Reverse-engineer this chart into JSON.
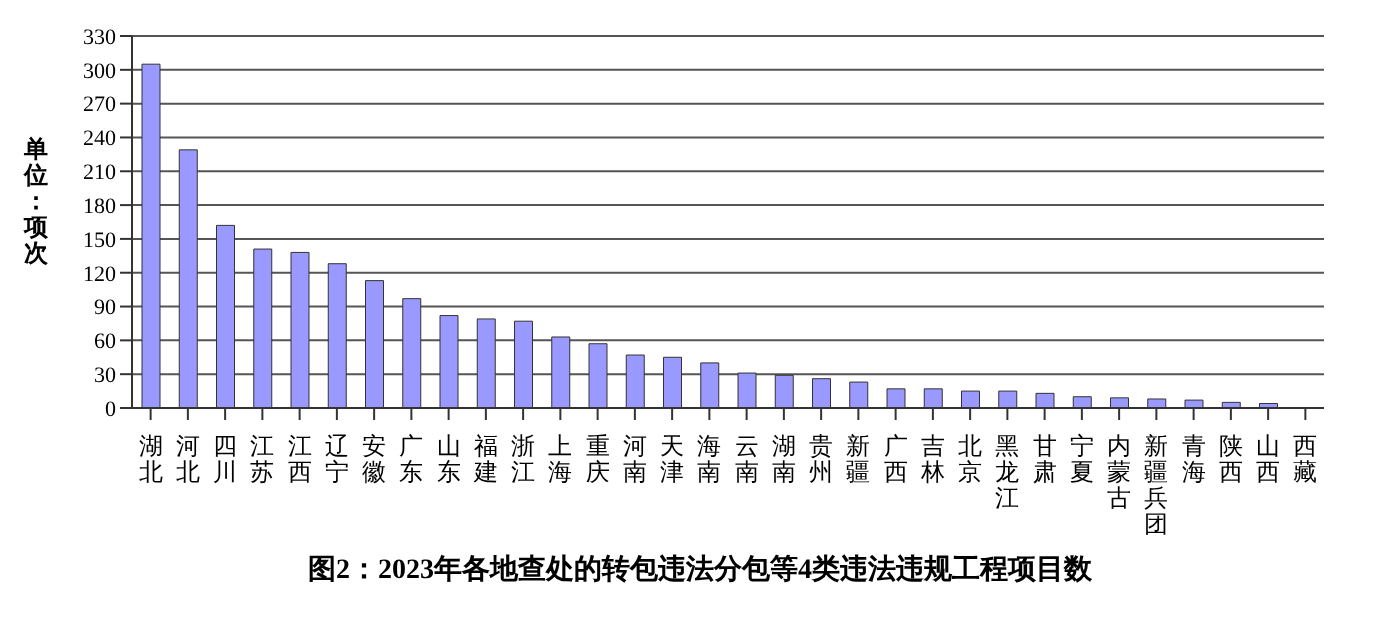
{
  "chart_data": {
    "type": "bar",
    "title": "图2：2023年各地查处的转包违法分包等4类违法违规工程项目数",
    "ylabel": "单位：项次",
    "categories": [
      "湖北",
      "河北",
      "四川",
      "江苏",
      "江西",
      "辽宁",
      "安徽",
      "广东",
      "山东",
      "福建",
      "浙江",
      "上海",
      "重庆",
      "河南",
      "天津",
      "海南",
      "云南",
      "湖南",
      "贵州",
      "新疆",
      "广西",
      "吉林",
      "北京",
      "黑龙江",
      "甘肃",
      "宁夏",
      "内蒙古",
      "新疆兵团",
      "青海",
      "陕西",
      "山西",
      "西藏"
    ],
    "values": [
      305,
      229,
      162,
      141,
      138,
      128,
      113,
      97,
      82,
      79,
      77,
      63,
      57,
      47,
      45,
      40,
      31,
      29,
      26,
      23,
      17,
      17,
      15,
      15,
      13,
      10,
      9,
      8,
      7,
      5,
      4,
      0
    ],
    "color": "#9999ff",
    "ylim": [
      0,
      330
    ],
    "yticks": [
      0,
      30,
      60,
      90,
      120,
      150,
      180,
      210,
      240,
      270,
      300,
      330
    ],
    "grid": "y"
  }
}
